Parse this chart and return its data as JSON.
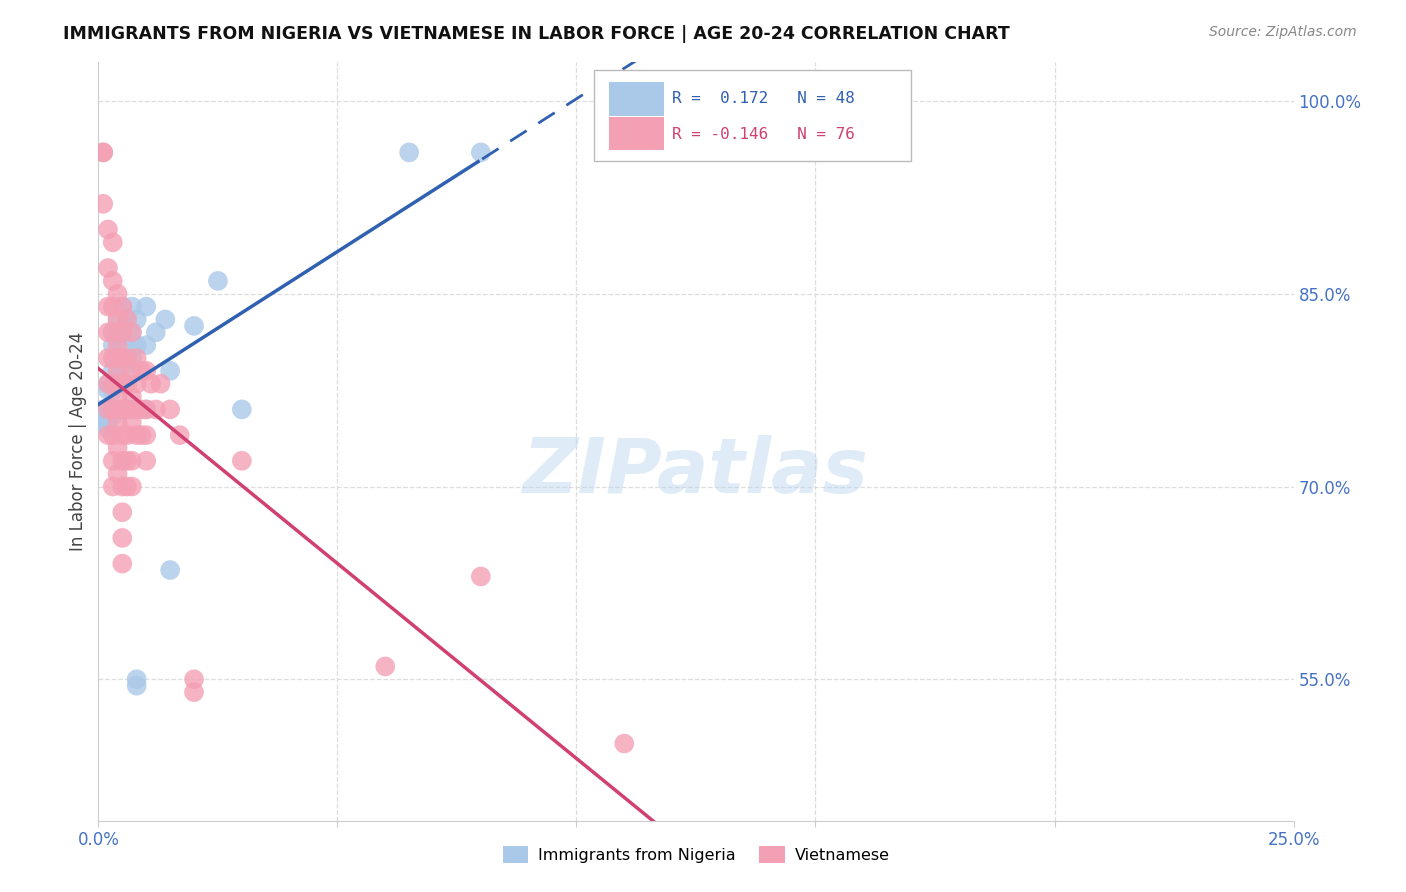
{
  "title": "IMMIGRANTS FROM NIGERIA VS VIETNAMESE IN LABOR FORCE | AGE 20-24 CORRELATION CHART",
  "source": "Source: ZipAtlas.com",
  "ylabel": "In Labor Force | Age 20-24",
  "ytick_values": [
    0.55,
    0.7,
    0.85,
    1.0
  ],
  "ytick_labels": [
    "55.0%",
    "70.0%",
    "85.0%",
    "100.0%"
  ],
  "xlim": [
    0.0,
    0.25
  ],
  "ylim": [
    0.44,
    1.03
  ],
  "nigeria_color": "#aac8e8",
  "vietnamese_color": "#f4a0b4",
  "nigeria_line_color": "#3060b0",
  "vietnamese_line_color": "#d04070",
  "watermark": "ZIPatlas",
  "nigeria_scatter": [
    [
      0.001,
      0.76
    ],
    [
      0.001,
      0.755
    ],
    [
      0.001,
      0.75
    ],
    [
      0.002,
      0.78
    ],
    [
      0.002,
      0.775
    ],
    [
      0.002,
      0.76
    ],
    [
      0.002,
      0.75
    ],
    [
      0.002,
      0.745
    ],
    [
      0.003,
      0.82
    ],
    [
      0.003,
      0.81
    ],
    [
      0.003,
      0.79
    ],
    [
      0.003,
      0.775
    ],
    [
      0.003,
      0.76
    ],
    [
      0.003,
      0.755
    ],
    [
      0.004,
      0.83
    ],
    [
      0.004,
      0.815
    ],
    [
      0.004,
      0.8
    ],
    [
      0.004,
      0.785
    ],
    [
      0.004,
      0.76
    ],
    [
      0.005,
      0.84
    ],
    [
      0.005,
      0.82
    ],
    [
      0.005,
      0.8
    ],
    [
      0.005,
      0.78
    ],
    [
      0.005,
      0.76
    ],
    [
      0.006,
      0.83
    ],
    [
      0.006,
      0.81
    ],
    [
      0.006,
      0.795
    ],
    [
      0.006,
      0.76
    ],
    [
      0.007,
      0.84
    ],
    [
      0.007,
      0.82
    ],
    [
      0.007,
      0.8
    ],
    [
      0.007,
      0.76
    ],
    [
      0.008,
      0.83
    ],
    [
      0.008,
      0.81
    ],
    [
      0.008,
      0.55
    ],
    [
      0.008,
      0.545
    ],
    [
      0.01,
      0.84
    ],
    [
      0.01,
      0.81
    ],
    [
      0.01,
      0.76
    ],
    [
      0.012,
      0.82
    ],
    [
      0.014,
      0.83
    ],
    [
      0.015,
      0.79
    ],
    [
      0.015,
      0.635
    ],
    [
      0.02,
      0.825
    ],
    [
      0.025,
      0.86
    ],
    [
      0.03,
      0.76
    ],
    [
      0.065,
      0.96
    ],
    [
      0.08,
      0.96
    ]
  ],
  "vietnamese_scatter": [
    [
      0.001,
      0.96
    ],
    [
      0.001,
      0.96
    ],
    [
      0.001,
      0.92
    ],
    [
      0.002,
      0.9
    ],
    [
      0.002,
      0.87
    ],
    [
      0.002,
      0.84
    ],
    [
      0.002,
      0.82
    ],
    [
      0.002,
      0.8
    ],
    [
      0.002,
      0.78
    ],
    [
      0.002,
      0.76
    ],
    [
      0.002,
      0.74
    ],
    [
      0.003,
      0.89
    ],
    [
      0.003,
      0.86
    ],
    [
      0.003,
      0.84
    ],
    [
      0.003,
      0.82
    ],
    [
      0.003,
      0.8
    ],
    [
      0.003,
      0.78
    ],
    [
      0.003,
      0.76
    ],
    [
      0.003,
      0.74
    ],
    [
      0.003,
      0.72
    ],
    [
      0.003,
      0.7
    ],
    [
      0.004,
      0.85
    ],
    [
      0.004,
      0.83
    ],
    [
      0.004,
      0.81
    ],
    [
      0.004,
      0.8
    ],
    [
      0.004,
      0.79
    ],
    [
      0.004,
      0.77
    ],
    [
      0.004,
      0.75
    ],
    [
      0.004,
      0.73
    ],
    [
      0.004,
      0.71
    ],
    [
      0.005,
      0.84
    ],
    [
      0.005,
      0.82
    ],
    [
      0.005,
      0.8
    ],
    [
      0.005,
      0.78
    ],
    [
      0.005,
      0.76
    ],
    [
      0.005,
      0.74
    ],
    [
      0.005,
      0.72
    ],
    [
      0.005,
      0.7
    ],
    [
      0.005,
      0.68
    ],
    [
      0.005,
      0.66
    ],
    [
      0.005,
      0.64
    ],
    [
      0.006,
      0.83
    ],
    [
      0.006,
      0.8
    ],
    [
      0.006,
      0.78
    ],
    [
      0.006,
      0.76
    ],
    [
      0.006,
      0.74
    ],
    [
      0.006,
      0.72
    ],
    [
      0.006,
      0.7
    ],
    [
      0.007,
      0.82
    ],
    [
      0.007,
      0.79
    ],
    [
      0.007,
      0.77
    ],
    [
      0.007,
      0.75
    ],
    [
      0.007,
      0.72
    ],
    [
      0.007,
      0.7
    ],
    [
      0.008,
      0.8
    ],
    [
      0.008,
      0.78
    ],
    [
      0.008,
      0.76
    ],
    [
      0.008,
      0.74
    ],
    [
      0.009,
      0.79
    ],
    [
      0.009,
      0.76
    ],
    [
      0.009,
      0.74
    ],
    [
      0.01,
      0.79
    ],
    [
      0.01,
      0.76
    ],
    [
      0.01,
      0.74
    ],
    [
      0.01,
      0.72
    ],
    [
      0.011,
      0.78
    ],
    [
      0.012,
      0.76
    ],
    [
      0.013,
      0.78
    ],
    [
      0.015,
      0.76
    ],
    [
      0.017,
      0.74
    ],
    [
      0.02,
      0.55
    ],
    [
      0.02,
      0.54
    ],
    [
      0.03,
      0.72
    ],
    [
      0.06,
      0.56
    ],
    [
      0.08,
      0.63
    ],
    [
      0.11,
      0.5
    ]
  ],
  "nigeria_line_xstart": 0.0,
  "nigeria_line_xsolid_end": 0.08,
  "nigeria_line_xend": 0.25,
  "nigline_y0": 0.748,
  "nigline_slope": 0.58,
  "vietline_y0": 0.776,
  "vietline_slope": -0.46
}
